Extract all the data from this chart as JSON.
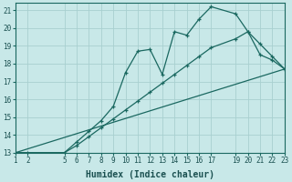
{
  "xlabel": "Humidex (Indice chaleur)",
  "bg_color": "#c8e8e8",
  "grid_color": "#a8d0d0",
  "line_color": "#1a6860",
  "line1_x": [
    1,
    2,
    5,
    6,
    7,
    8,
    9,
    10,
    11,
    12,
    13,
    14,
    15,
    16,
    17,
    19,
    20,
    21,
    22,
    23
  ],
  "line1_y": [
    13.0,
    13.0,
    13.0,
    13.4,
    13.9,
    14.4,
    14.9,
    15.4,
    15.9,
    16.4,
    16.9,
    17.4,
    17.9,
    18.4,
    18.9,
    19.4,
    19.8,
    18.5,
    18.2,
    17.7
  ],
  "line2_x": [
    1,
    5,
    6,
    7,
    8,
    9,
    10,
    11,
    12,
    13,
    14,
    15,
    16,
    17,
    19,
    20,
    21,
    22,
    23
  ],
  "line2_y": [
    13.0,
    13.0,
    13.6,
    14.2,
    14.8,
    15.6,
    17.5,
    18.7,
    18.8,
    17.4,
    19.8,
    19.6,
    20.5,
    21.2,
    20.8,
    19.8,
    19.1,
    18.4,
    17.7
  ],
  "line3_x": [
    1,
    23
  ],
  "line3_y": [
    13.0,
    17.7
  ],
  "xlim": [
    1,
    23
  ],
  "ylim": [
    13,
    21.4
  ],
  "xticks": [
    1,
    2,
    5,
    6,
    7,
    8,
    9,
    10,
    11,
    12,
    13,
    14,
    15,
    16,
    17,
    19,
    20,
    21,
    22,
    23
  ],
  "yticks": [
    13,
    14,
    15,
    16,
    17,
    18,
    19,
    20,
    21
  ],
  "tick_fontsize": 5.5,
  "label_fontsize": 7.0
}
